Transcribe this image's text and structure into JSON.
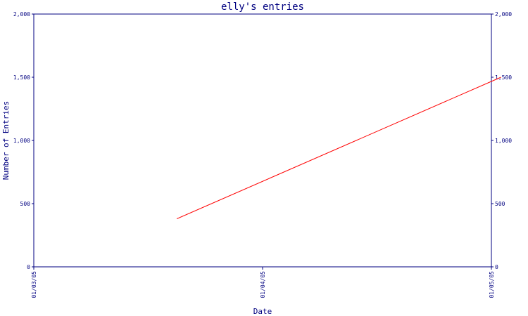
{
  "chart_data": {
    "type": "line",
    "title": "elly's entries",
    "xlabel": "Date",
    "ylabel": "Number of Entries",
    "x_ticks": [
      "01/03/05",
      "01/04/05",
      "01/05/05"
    ],
    "y_ticks": [
      "0",
      "500",
      "1,000",
      "1,500",
      "2,000"
    ],
    "ylim": [
      0,
      2000
    ],
    "grid": false,
    "series": [
      {
        "color": "#ff0000",
        "points": [
          {
            "x": "2005-01-03 15:00",
            "y": 380
          },
          {
            "x": "2005-01-05 01:00",
            "y": 1500
          }
        ]
      }
    ]
  }
}
